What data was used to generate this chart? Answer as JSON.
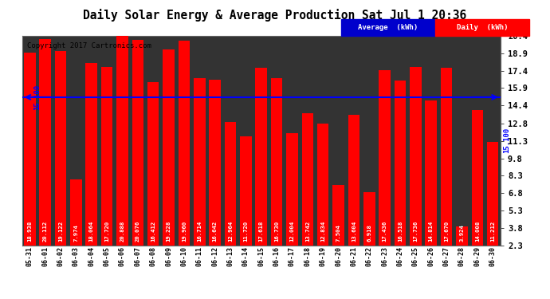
{
  "title": "Daily Solar Energy & Average Production Sat Jul 1 20:36",
  "copyright": "Copyright 2017 Cartronics.com",
  "categories": [
    "05-31",
    "06-01",
    "06-02",
    "06-03",
    "06-04",
    "06-05",
    "06-06",
    "06-07",
    "06-08",
    "06-09",
    "06-10",
    "06-11",
    "06-12",
    "06-13",
    "06-14",
    "06-15",
    "06-16",
    "06-17",
    "06-18",
    "06-19",
    "06-20",
    "06-21",
    "06-22",
    "06-23",
    "06-24",
    "06-25",
    "06-26",
    "06-27",
    "06-28",
    "06-29",
    "06-30"
  ],
  "values": [
    18.938,
    20.112,
    19.122,
    7.974,
    18.064,
    17.72,
    20.888,
    20.076,
    16.412,
    19.228,
    19.96,
    16.714,
    16.642,
    12.964,
    11.72,
    17.618,
    16.73,
    12.004,
    13.742,
    12.834,
    7.504,
    13.604,
    6.918,
    17.436,
    16.518,
    17.736,
    14.814,
    17.67,
    3.924,
    14.008,
    11.212
  ],
  "value_labels": [
    "18.938",
    "20.112",
    "19.122",
    "7.974",
    "18.064",
    "17.720",
    "20.888",
    "20.076",
    "16.412",
    "19.228",
    "19.960",
    "16.714",
    "16.642",
    "12.964",
    "11.720",
    "17.618",
    "16.730",
    "12.004",
    "13.742",
    "12.834",
    "7.504",
    "13.604",
    "6.918",
    "17.436",
    "16.518",
    "17.736",
    "14.814",
    "17.670",
    "3.924",
    "14.008",
    "11.212"
  ],
  "average": 15.1,
  "average_label": "15.100",
  "bar_color": "#FF0000",
  "average_line_color": "#0000FF",
  "background_color": "#000000",
  "plot_bg_color": "#333333",
  "grid_color": "#888888",
  "ylim": [
    2.3,
    20.4
  ],
  "yticks": [
    2.3,
    3.8,
    5.3,
    6.8,
    8.3,
    9.8,
    11.3,
    12.8,
    14.4,
    15.9,
    17.4,
    18.9,
    20.4
  ],
  "title_color": "#000000",
  "title_bg": "#FFFFFF",
  "legend_avg_bg": "#0000CC",
  "legend_avg_label": "Average  (kWh)",
  "legend_daily_bg": "#FF0000",
  "legend_daily_label": "Daily  (kWh)"
}
